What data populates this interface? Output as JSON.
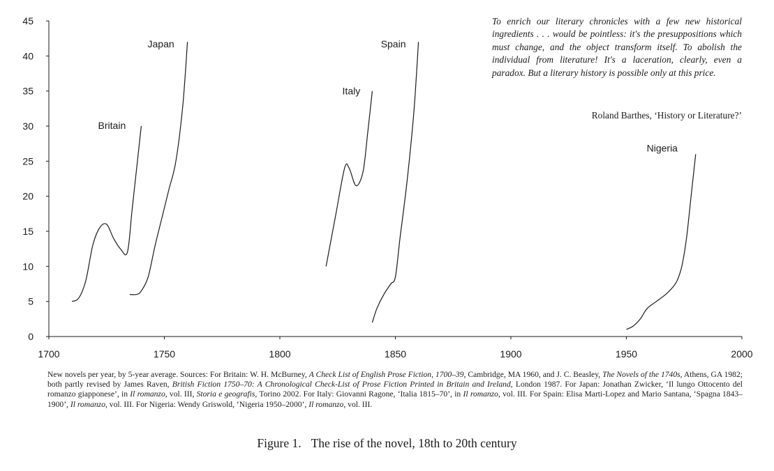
{
  "chart_data": {
    "type": "line",
    "xlabel": "",
    "ylabel": "",
    "xlim": [
      1700,
      2000
    ],
    "ylim": [
      0,
      45
    ],
    "x_ticks": [
      1700,
      1750,
      1800,
      1850,
      1900,
      1950,
      2000
    ],
    "y_ticks": [
      0,
      5,
      10,
      15,
      20,
      25,
      30,
      35,
      40,
      45
    ],
    "grid": false,
    "legend": "direct labels at end of each series",
    "series": [
      {
        "name": "Britain",
        "x": [
          1710,
          1713,
          1716,
          1719,
          1722,
          1725,
          1728,
          1731,
          1734,
          1736,
          1738,
          1740
        ],
        "y": [
          5,
          5.5,
          8,
          13,
          15.5,
          16,
          14,
          12.5,
          12,
          18,
          24,
          30
        ]
      },
      {
        "name": "Japan",
        "x": [
          1735,
          1738,
          1740,
          1743,
          1746,
          1749,
          1752,
          1755,
          1758,
          1760
        ],
        "y": [
          6,
          6,
          6.5,
          8.5,
          13,
          17,
          21,
          25,
          33,
          42
        ]
      },
      {
        "name": "Italy",
        "x": [
          1820,
          1824,
          1828,
          1830,
          1833,
          1836,
          1838,
          1840
        ],
        "y": [
          10,
          17,
          24,
          24,
          21.5,
          23.5,
          29,
          35
        ]
      },
      {
        "name": "Spain",
        "x": [
          1840,
          1842,
          1845,
          1848,
          1850,
          1852,
          1855,
          1858,
          1860
        ],
        "y": [
          2,
          4,
          6,
          7.5,
          8.5,
          14,
          22,
          32,
          42
        ]
      },
      {
        "name": "Nigeria",
        "x": [
          1950,
          1953,
          1956,
          1959,
          1963,
          1967,
          1970,
          1972,
          1974,
          1976,
          1978,
          1980
        ],
        "y": [
          1,
          1.5,
          2.5,
          4,
          5,
          6,
          7,
          8,
          10,
          14,
          20,
          26
        ]
      }
    ]
  },
  "quote": {
    "text": "To enrich our literary chronicles with a few new historical ingredients . . . would be pointless: it's the presuppositions which must change, and the object transform itself. To abolish the individual from literature! It's a laceration, clearly, even a paradox. But a literary history is possible only at this price.",
    "author": "Roland Barthes, ‘History or Literature?’"
  },
  "caption": {
    "lead": "New novels per year, by 5-year average. Sources: For Britain: W. H. McBurney, ",
    "britain_title": "A Check List of English Prose Fiction, 1700–39",
    "britain_rest": ", Cambridge, MA 1960, and J. C. Beasley, ",
    "beasley_title": "The Novels of the 1740s",
    "beasley_rest": ", Athens, GA 1982; both partly revised by James Raven, ",
    "raven_title": "British Fiction 1750–70: A Chronological Check-List of Prose Fiction Printed in Britain and Ireland",
    "raven_rest": ", London 1987. For Japan: Jonathan Zwicker, ‘Il lungo Ottocento del romanzo giapponese’, in ",
    "japan_title": "Il romanzo",
    "japan_mid": ", vol. III, ",
    "japan_title2": "Storia e geografis",
    "japan_rest": ", Torino 2002. For Italy: Giovanni Ragone, ‘Italia 1815–70’, in ",
    "italy_title": "Il romanzo",
    "italy_rest": ", vol. III. For Spain: Elisa Marti-Lopez and Mario Santana, ‘Spagna 1843–1900’, ",
    "spain_title": "Il romanzo",
    "spain_rest": ", vol. III. For Nigeria: Wendy Griswold, ‘Nigeria 1950–2000’, ",
    "nigeria_title": "Il romanzo",
    "nigeria_rest": ", vol. III."
  },
  "figure": {
    "number": "Figure 1.",
    "title": "The rise of the novel, 18th to 20th century"
  }
}
